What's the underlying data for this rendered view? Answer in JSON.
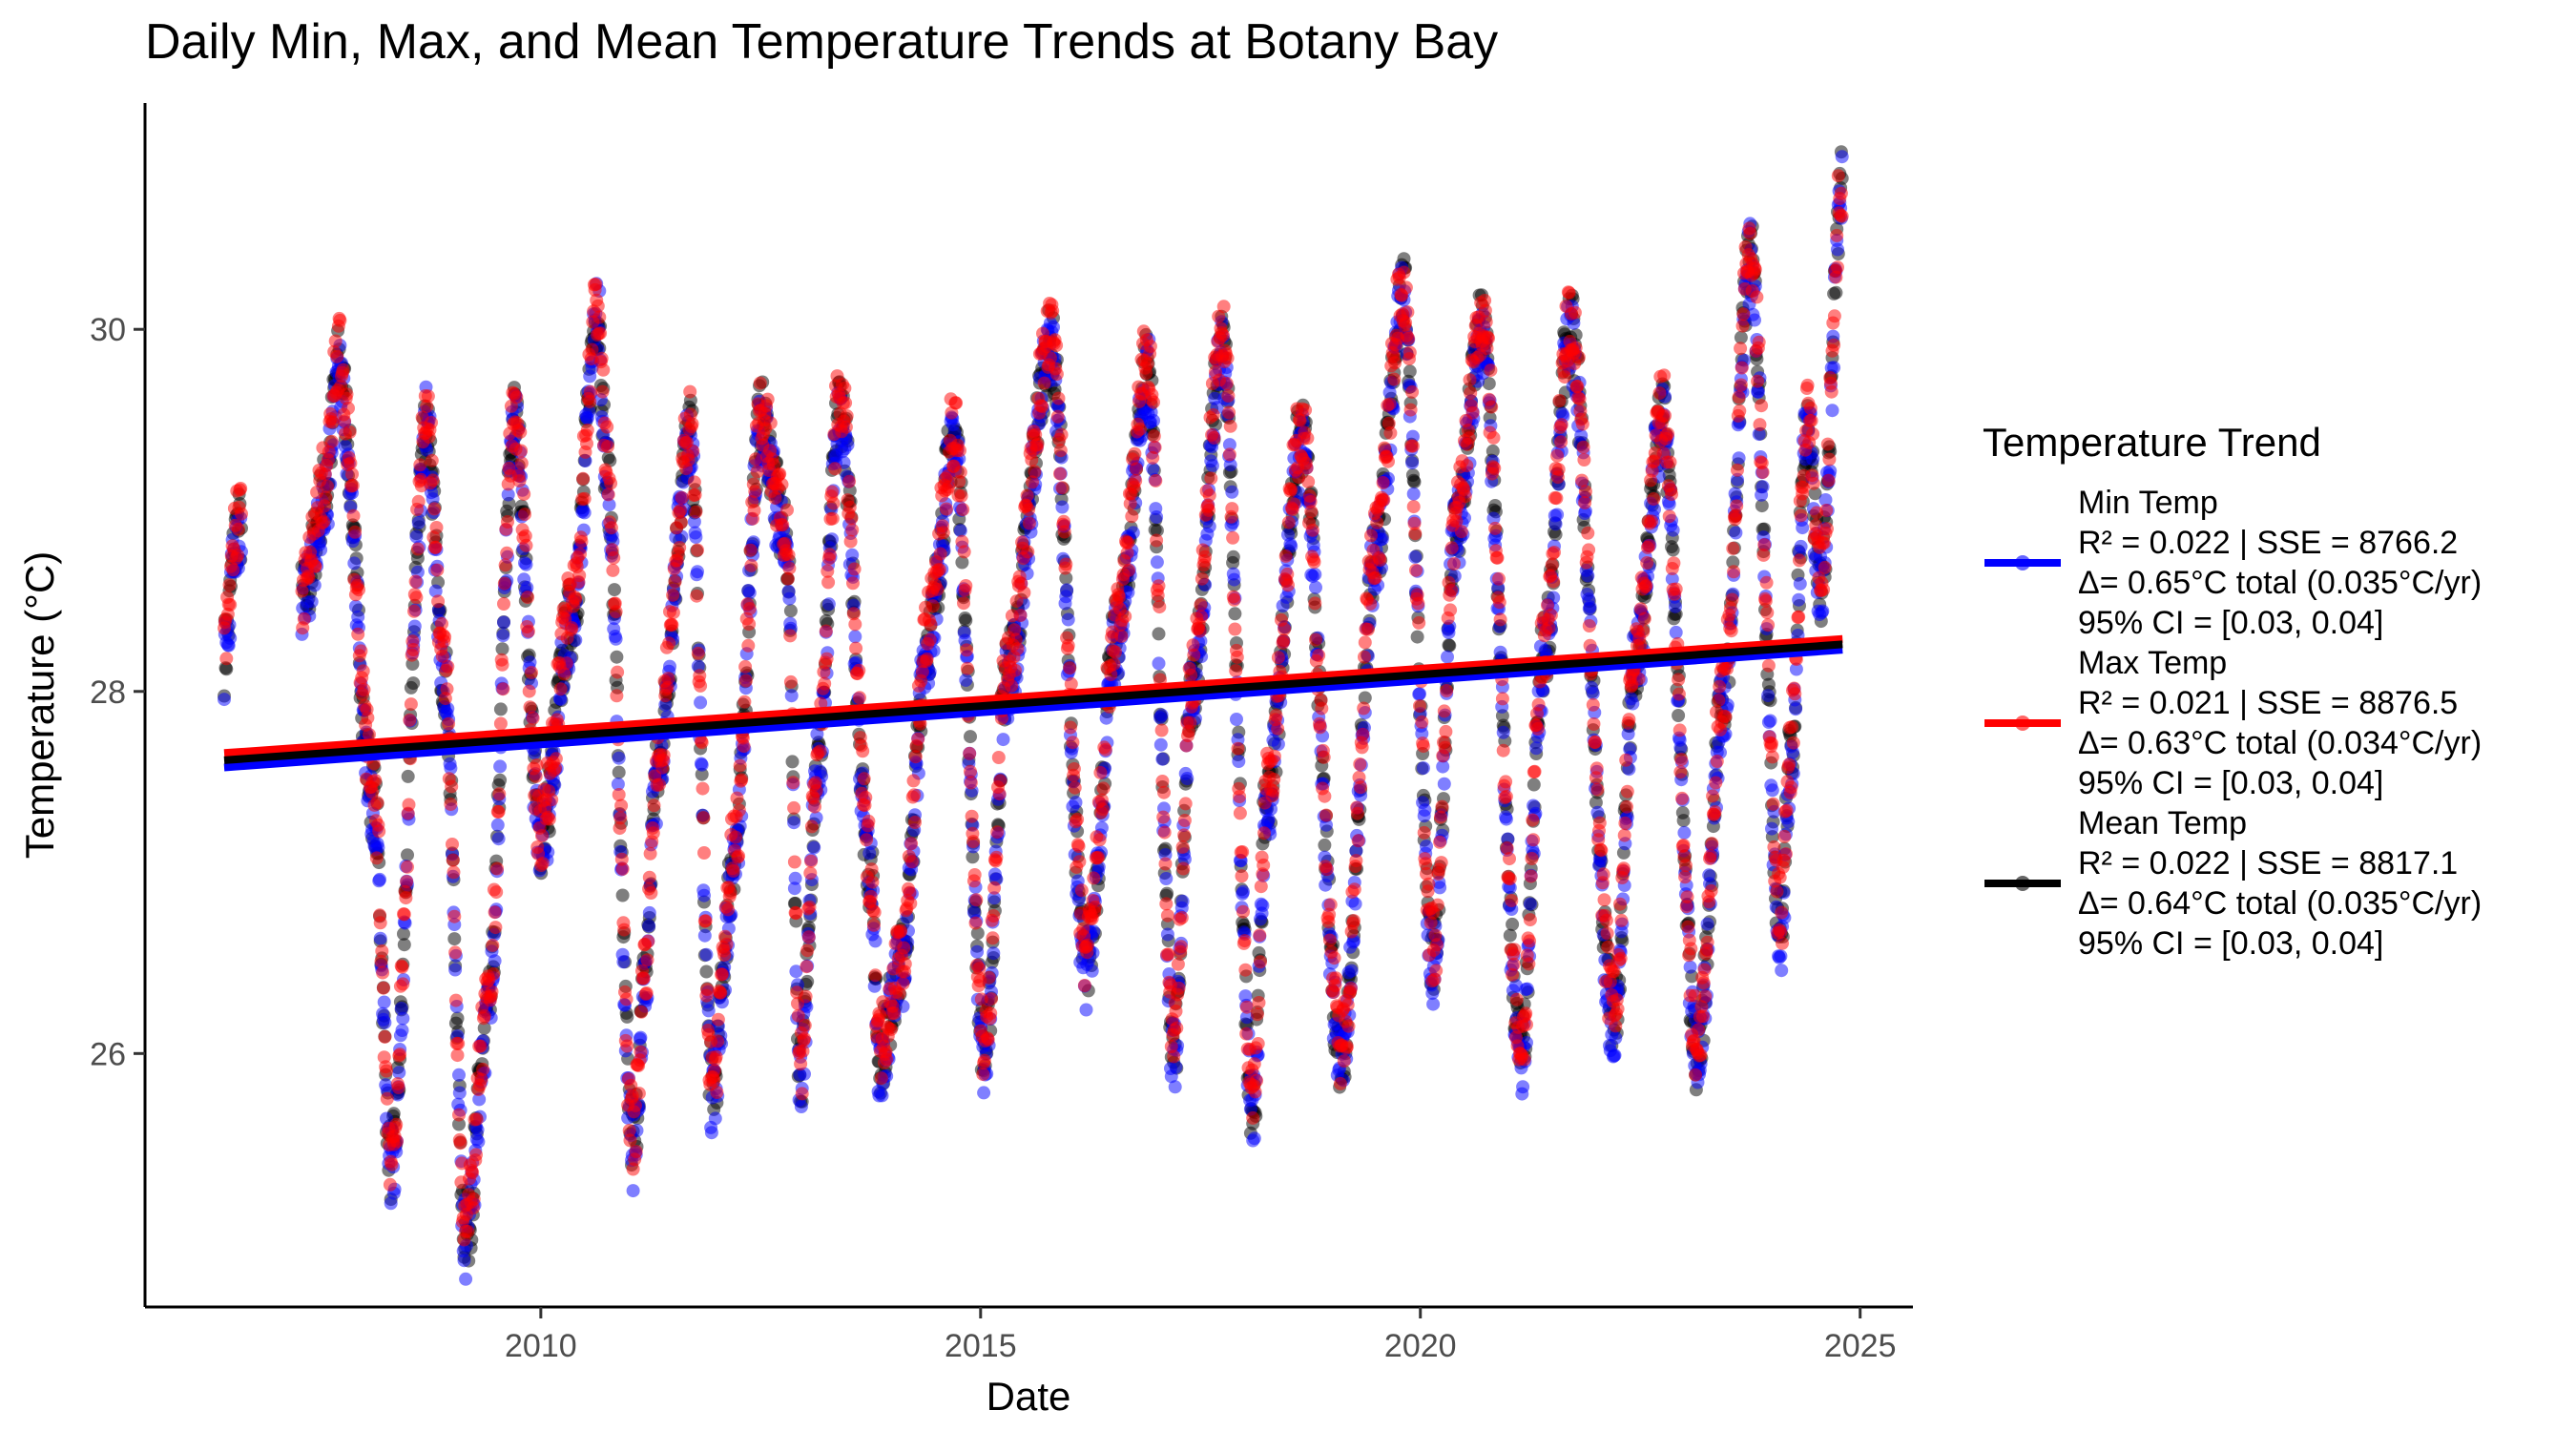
{
  "chart_data": {
    "type": "scatter",
    "title": "Daily Min, Max, and Mean Temperature Trends at Botany Bay",
    "xlabel": "Date",
    "ylabel": "Temperature (°C)",
    "xlim": [
      2005.5,
      2025.6
    ],
    "ylim": [
      24.6,
      31.25
    ],
    "x_ticks": [
      2010,
      2015,
      2020,
      2025
    ],
    "y_ticks": [
      26,
      28,
      30
    ],
    "grid": false,
    "legend_placement": "right",
    "legend_title": "Temperature Trend",
    "data_range": [
      2006.4,
      2024.8
    ],
    "series": [
      {
        "name": "Min Temp",
        "color": "#0000ff",
        "legend_lines": [
          "Min Temp",
          "R² = 0.022 | SSE = 8766.2",
          "Δ= 0.65°C total (0.035°C/yr)",
          "95% CI = [0.03, 0.04]"
        ],
        "trend": {
          "x": [
            2006.4,
            2024.8
          ],
          "y": [
            27.58,
            28.23
          ]
        }
      },
      {
        "name": "Max Temp",
        "color": "#ff0000",
        "legend_lines": [
          "Max Temp",
          "R² = 0.021 | SSE = 8876.5",
          "Δ= 0.63°C total (0.034°C/yr)",
          "95% CI = [0.03, 0.04]"
        ],
        "trend": {
          "x": [
            2006.4,
            2024.8
          ],
          "y": [
            27.66,
            28.29
          ]
        }
      },
      {
        "name": "Mean Temp",
        "color": "#000000",
        "legend_lines": [
          "Mean Temp",
          "R² = 0.022 | SSE = 8817.1",
          "Δ= 0.64°C total (0.035°C/yr)",
          "95% CI = [0.03, 0.04]"
        ],
        "trend": {
          "x": [
            2006.4,
            2024.8
          ],
          "y": [
            27.62,
            28.26
          ]
        }
      }
    ],
    "observations": {
      "x": [
        2006.4,
        2006.55,
        2007.3,
        2007.55,
        2007.7,
        2008.1,
        2008.3,
        2008.7,
        2008.9,
        2009.15,
        2009.4,
        2009.7,
        2010.0,
        2010.35,
        2010.65,
        2010.75,
        2011.05,
        2011.2,
        2011.3,
        2011.7,
        2011.95,
        2012.2,
        2012.5,
        2012.8,
        2012.95,
        2013.15,
        2013.4,
        2013.75,
        2013.85,
        2014.1,
        2014.4,
        2014.7,
        2015.05,
        2015.3,
        2015.8,
        2016.2,
        2016.55,
        2016.9,
        2017.2,
        2017.4,
        2017.75,
        2018.1,
        2018.25,
        2018.65,
        2019.1,
        2019.5,
        2019.8,
        2020.15,
        2020.4,
        2020.7,
        2021.15,
        2021.4,
        2021.7,
        2022.2,
        2022.45,
        2022.75,
        2023.15,
        2023.45,
        2023.75,
        2024.1,
        2024.2,
        2024.4,
        2024.55,
        2024.8
      ],
      "y": [
        28.2,
        28.9,
        28.5,
        29.1,
        29.8,
        27.4,
        25.4,
        29.5,
        28.1,
        25.0,
        26.2,
        29.5,
        27.2,
        28.4,
        30.1,
        29.2,
        25.5,
        26.5,
        27.5,
        29.4,
        25.8,
        27.1,
        29.5,
        28.8,
        25.9,
        27.6,
        29.6,
        27.0,
        26.0,
        26.5,
        28.3,
        29.4,
        26.0,
        28.1,
        29.9,
        26.5,
        28.3,
        29.8,
        26.0,
        28.0,
        29.9,
        25.7,
        27.4,
        29.4,
        26.0,
        28.8,
        30.2,
        26.5,
        28.9,
        30.0,
        26.0,
        28.2,
        30.0,
        26.2,
        28.2,
        29.5,
        26.0,
        28.0,
        30.4,
        26.7,
        27.6,
        29.5,
        28.6,
        30.8
      ]
    }
  }
}
